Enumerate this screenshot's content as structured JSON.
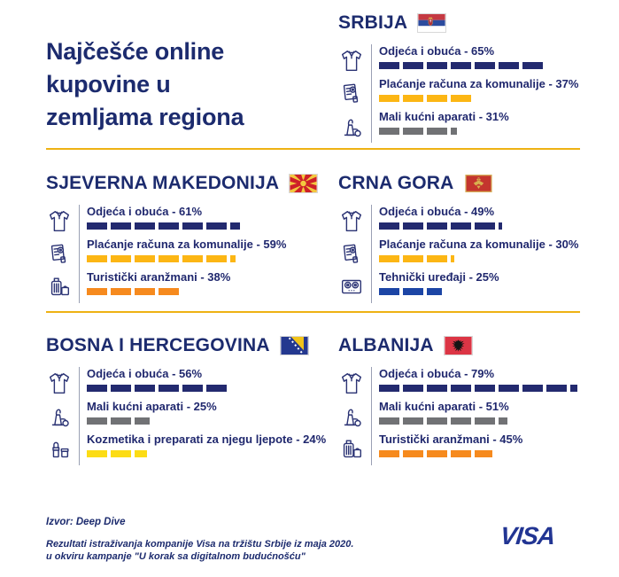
{
  "title": "Najčešće online kupovine u zemljama regiona",
  "colors": {
    "navy_bar": "#232a6f",
    "gold_bar": "#fcb614",
    "orange_bar": "#f68a1e",
    "gray_bar": "#717275",
    "royal_blue_bar": "#1c45a5",
    "lemon_bar": "#fcdc15",
    "divider": "#eeb214",
    "heading_text": "#1c2b6e",
    "visa_logo_blue": "#223593"
  },
  "countries": [
    {
      "name": "SRBIJA",
      "flag": "serbia",
      "items": [
        {
          "icon": "tshirt-icon",
          "label": "Odjeća i obuća - 65%",
          "category": "Odjeća i obuća",
          "value": 65,
          "color": "#232a6f"
        },
        {
          "icon": "receipt-icon",
          "label": "Plaćanje računa za komunalije - 37%",
          "category": "Plaćanje računa za komunalije",
          "value": 37,
          "color": "#fcb614"
        },
        {
          "icon": "vacuum-icon",
          "label": "Mali kućni aparati - 31%",
          "category": "Mali kućni aparati",
          "value": 31,
          "color": "#717275"
        }
      ]
    },
    {
      "name": "SJEVERNA MAKEDONIJA",
      "flag": "north-macedonia",
      "items": [
        {
          "icon": "tshirt-icon",
          "label": "Odjeća i obuća - 61%",
          "category": "Odjeća i obuća",
          "value": 61,
          "color": "#232a6f"
        },
        {
          "icon": "receipt-icon",
          "label": "Plaćanje računa za komunalije - 59%",
          "category": "Plaćanje računa za komunalije",
          "value": 59,
          "color": "#fcb614"
        },
        {
          "icon": "suitcase-icon",
          "label": "Turistički aranžmani - 38%",
          "category": "Turistički aranžmani",
          "value": 38,
          "color": "#f68a1e"
        }
      ]
    },
    {
      "name": "CRNA GORA",
      "flag": "montenegro",
      "items": [
        {
          "icon": "tshirt-icon",
          "label": "Odjeća i obuća - 49%",
          "category": "Odjeća i obuća",
          "value": 49,
          "color": "#232a6f"
        },
        {
          "icon": "receipt-icon",
          "label": "Plaćanje računa za komunalije - 30%",
          "category": "Plaćanje računa za komunalije",
          "value": 30,
          "color": "#fcb614"
        },
        {
          "icon": "stove-icon",
          "label": "Tehnički uređaji - 25%",
          "category": "Tehnički uređaji",
          "value": 25,
          "color": "#1c45a5"
        }
      ]
    },
    {
      "name": "BOSNA I HERCEGOVINA",
      "flag": "bosnia-herzegovina",
      "items": [
        {
          "icon": "tshirt-icon",
          "label": "Odjeća i obuća - 56%",
          "category": "Odjeća i obuća",
          "value": 56,
          "color": "#232a6f"
        },
        {
          "icon": "vacuum-icon",
          "label": "Mali kućni aparati - 25%",
          "category": "Mali kućni aparati",
          "value": 25,
          "color": "#717275"
        },
        {
          "icon": "cosmetics-icon",
          "label": "Kozmetika i preparati za njegu ljepote - 24%",
          "category": "Kozmetika i preparati za njegu ljepote",
          "value": 24,
          "color": "#fcdc15"
        }
      ]
    },
    {
      "name": "ALBANIJA",
      "flag": "albania",
      "items": [
        {
          "icon": "tshirt-icon",
          "label": "Odjeća i obuća - 79%",
          "category": "Odjeća i obuća",
          "value": 79,
          "color": "#232a6f"
        },
        {
          "icon": "vacuum-icon",
          "label": "Mali kućni aparati - 51%",
          "category": "Mali kućni aparati",
          "value": 51,
          "color": "#717275"
        },
        {
          "icon": "suitcase-icon",
          "label": "Turistički aranžmani - 45%",
          "category": "Turistički aranžmani",
          "value": 45,
          "color": "#f68a1e"
        }
      ]
    }
  ],
  "footer": {
    "source": "Izvor: Deep Dive",
    "note_line1": "Rezultati istraživanja kompanije Visa na tržištu Srbije iz maja 2020.",
    "note_line2": "u okviru kampanje \"U korak sa digitalnom budućnošću\"",
    "brand": "VISA"
  },
  "chart_data": [
    {
      "type": "bar",
      "title": "SRBIJA",
      "orientation": "horizontal",
      "unit": "%",
      "categories": [
        "Odjeća i obuća",
        "Plaćanje računa za komunalije",
        "Mali kućni aparati"
      ],
      "values": [
        65,
        37,
        31
      ],
      "colors": [
        "#232a6f",
        "#fcb614",
        "#717275"
      ],
      "xlim": [
        0,
        100
      ],
      "grid": false,
      "legend": false
    },
    {
      "type": "bar",
      "title": "SJEVERNA MAKEDONIJA",
      "orientation": "horizontal",
      "unit": "%",
      "categories": [
        "Odjeća i obuća",
        "Plaćanje računa za komunalije",
        "Turistički aranžmani"
      ],
      "values": [
        61,
        59,
        38
      ],
      "colors": [
        "#232a6f",
        "#fcb614",
        "#f68a1e"
      ],
      "xlim": [
        0,
        100
      ],
      "grid": false,
      "legend": false
    },
    {
      "type": "bar",
      "title": "CRNA GORA",
      "orientation": "horizontal",
      "unit": "%",
      "categories": [
        "Odjeća i obuća",
        "Plaćanje računa za komunalije",
        "Tehnički uređaji"
      ],
      "values": [
        49,
        30,
        25
      ],
      "colors": [
        "#232a6f",
        "#fcb614",
        "#1c45a5"
      ],
      "xlim": [
        0,
        100
      ],
      "grid": false,
      "legend": false
    },
    {
      "type": "bar",
      "title": "BOSNA I HERCEGOVINA",
      "orientation": "horizontal",
      "unit": "%",
      "categories": [
        "Odjeća i obuća",
        "Mali kućni aparati",
        "Kozmetika i preparati za njegu ljepote"
      ],
      "values": [
        56,
        25,
        24
      ],
      "colors": [
        "#232a6f",
        "#717275",
        "#fcdc15"
      ],
      "xlim": [
        0,
        100
      ],
      "grid": false,
      "legend": false
    },
    {
      "type": "bar",
      "title": "ALBANIJA",
      "orientation": "horizontal",
      "unit": "%",
      "categories": [
        "Odjeća i obuća",
        "Mali kućni aparati",
        "Turistički aranžmani"
      ],
      "values": [
        79,
        51,
        45
      ],
      "colors": [
        "#232a6f",
        "#717275",
        "#f68a1e"
      ],
      "xlim": [
        0,
        100
      ],
      "grid": false,
      "legend": false
    }
  ]
}
